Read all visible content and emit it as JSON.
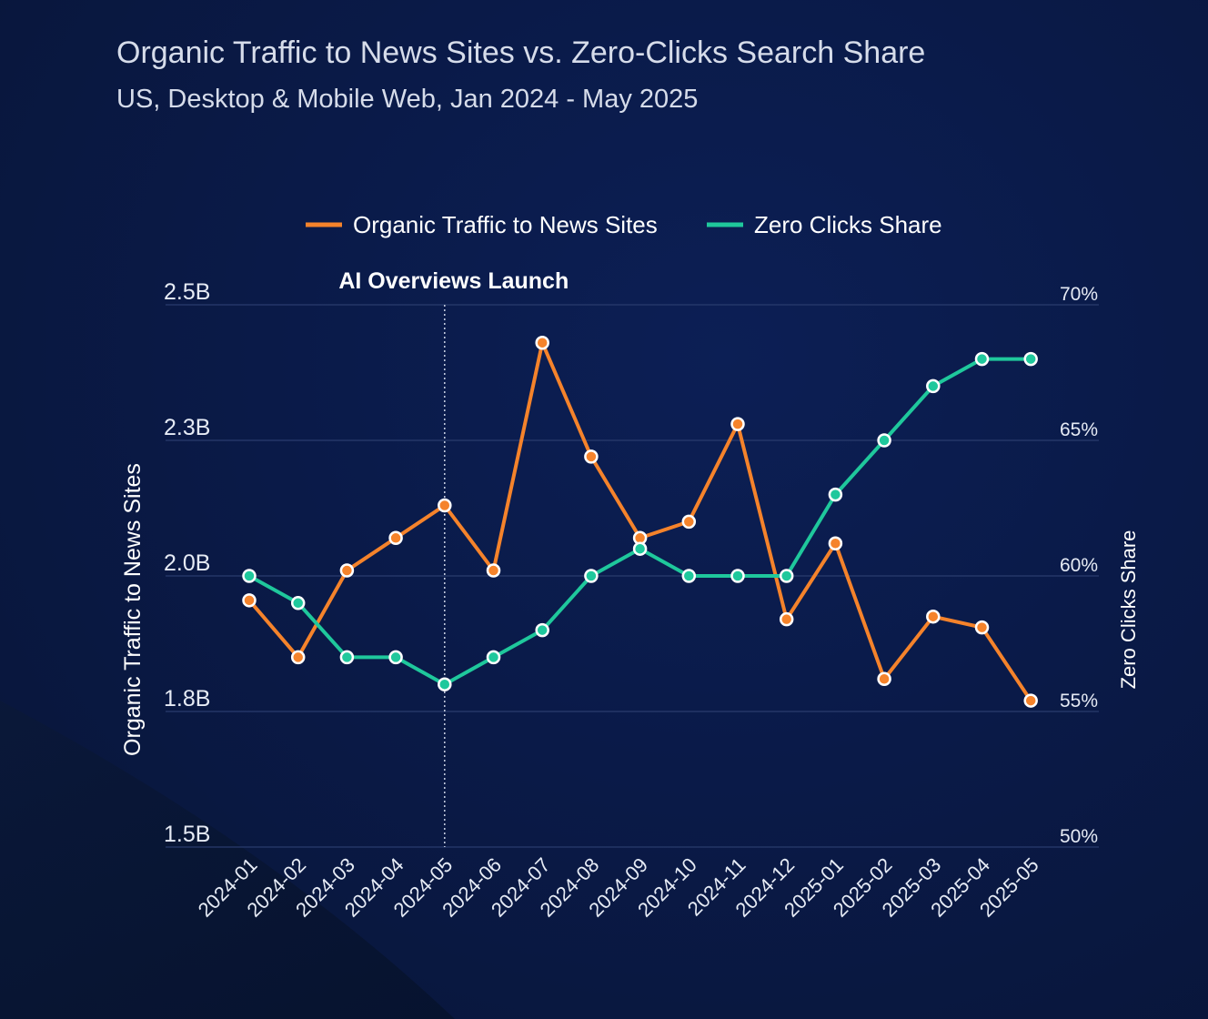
{
  "title": "Organic Traffic to News Sites vs. Zero-Clicks Search Share",
  "subtitle": "US, Desktop & Mobile Web, Jan 2024 - May 2025",
  "colors": {
    "traffic": "#f5832b",
    "zero_clicks": "#1fc89c",
    "gridline": "#2a3c6e",
    "annotation_line": "#c9d1e3"
  },
  "chart_data": {
    "type": "line",
    "title": "Organic Traffic to News Sites vs. Zero-Clicks Search Share",
    "subtitle": "US, Desktop & Mobile Web, Jan 2024 - May 2025",
    "categories": [
      "2024-01",
      "2024-02",
      "2024-03",
      "2024-04",
      "2024-05",
      "2024-06",
      "2024-07",
      "2024-08",
      "2024-09",
      "2024-10",
      "2024-11",
      "2024-12",
      "2025-01",
      "2025-02",
      "2025-03",
      "2025-04",
      "2025-05"
    ],
    "series": [
      {
        "name": "Organic Traffic to News Sites",
        "axis": "left",
        "color": "#f5832b",
        "values": [
          1.955,
          1.85,
          2.01,
          2.07,
          2.13,
          2.01,
          2.43,
          2.22,
          2.07,
          2.1,
          2.28,
          1.92,
          2.06,
          1.81,
          1.925,
          1.905,
          1.77
        ]
      },
      {
        "name": "Zero Clicks Share",
        "axis": "right",
        "color": "#1fc89c",
        "values": [
          60,
          59,
          57,
          57,
          56,
          57,
          58,
          60,
          61,
          60,
          60,
          60,
          63,
          65,
          67,
          68,
          68
        ]
      }
    ],
    "y_left": {
      "label": "Organic Traffic to News Sites",
      "ylim": [
        1.5,
        2.5
      ],
      "ticks": [
        1.5,
        1.75,
        2.0,
        2.25,
        2.5
      ],
      "tick_labels": [
        "1.5B",
        "1.8B",
        "2.0B",
        "2.3B",
        "2.5B"
      ]
    },
    "y_right": {
      "label": "Zero Clicks Share",
      "ylim": [
        50,
        70
      ],
      "ticks": [
        50,
        55,
        60,
        65,
        70
      ],
      "tick_labels": [
        "50%",
        "55%",
        "60%",
        "65%",
        "70%"
      ]
    },
    "annotation": {
      "label": "AI Overviews Launch",
      "at": "2024-05"
    },
    "legend": {
      "position": "top-center",
      "entries": [
        "Organic Traffic to News Sites",
        "Zero Clicks Share"
      ]
    },
    "grid": true
  }
}
